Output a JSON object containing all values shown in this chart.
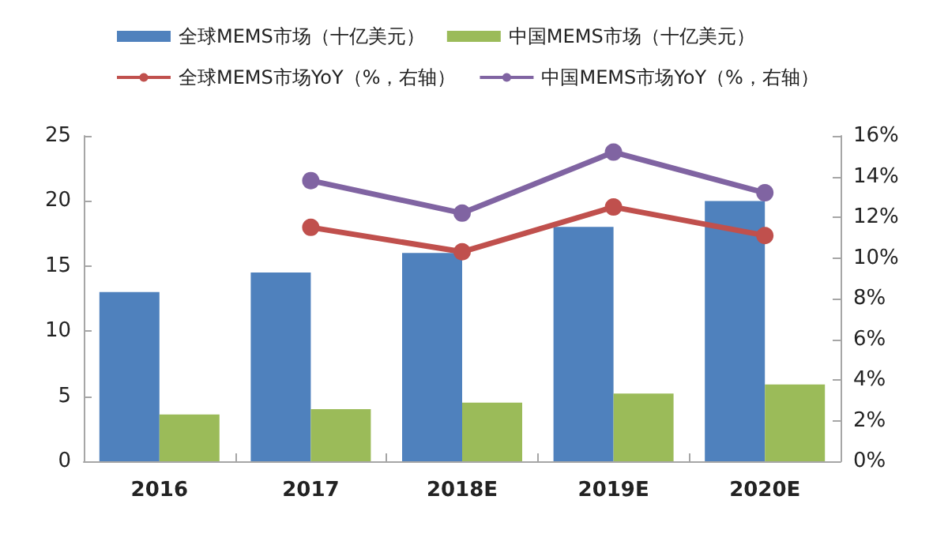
{
  "chart_data": {
    "type": "bar",
    "categories": [
      "2016",
      "2017",
      "2018E",
      "2019E",
      "2020E"
    ],
    "series": [
      {
        "name": "全球MEMS市场（十亿美元）",
        "color": "#4f81bd",
        "values": [
          13,
          14.5,
          16,
          18,
          20
        ]
      },
      {
        "name": "中国MEMS市场（十亿美元）",
        "color": "#9bbb59",
        "values": [
          3.6,
          4.0,
          4.5,
          5.2,
          5.9
        ]
      },
      {
        "name": "全球MEMS市场YoY（%，右轴）",
        "type": "line",
        "axis": "y2",
        "color": "#c0504d",
        "values": [
          null,
          11.5,
          10.3,
          12.5,
          11.1
        ]
      },
      {
        "name": "中国MEMS市场YoY（%，右轴）",
        "type": "line",
        "axis": "y2",
        "color": "#8064a2",
        "values": [
          null,
          13.8,
          12.2,
          15.2,
          13.2
        ]
      }
    ],
    "ylim": [
      0,
      25
    ],
    "yticks": [
      0,
      5,
      10,
      15,
      20,
      25
    ],
    "y2lim": [
      0,
      16
    ],
    "y2ticks": [
      {
        "value": 0,
        "label": "0%"
      },
      {
        "value": 2,
        "label": "2%"
      },
      {
        "value": 4,
        "label": "4%"
      },
      {
        "value": 6,
        "label": "6%"
      },
      {
        "value": 8,
        "label": "8%"
      },
      {
        "value": 10,
        "label": "10%"
      },
      {
        "value": 12,
        "label": "12%"
      },
      {
        "value": 14,
        "label": "14%"
      },
      {
        "value": 16,
        "label": "16%"
      }
    ],
    "legend": "top",
    "grid": false,
    "marker": "circle",
    "line_style": "solid"
  }
}
